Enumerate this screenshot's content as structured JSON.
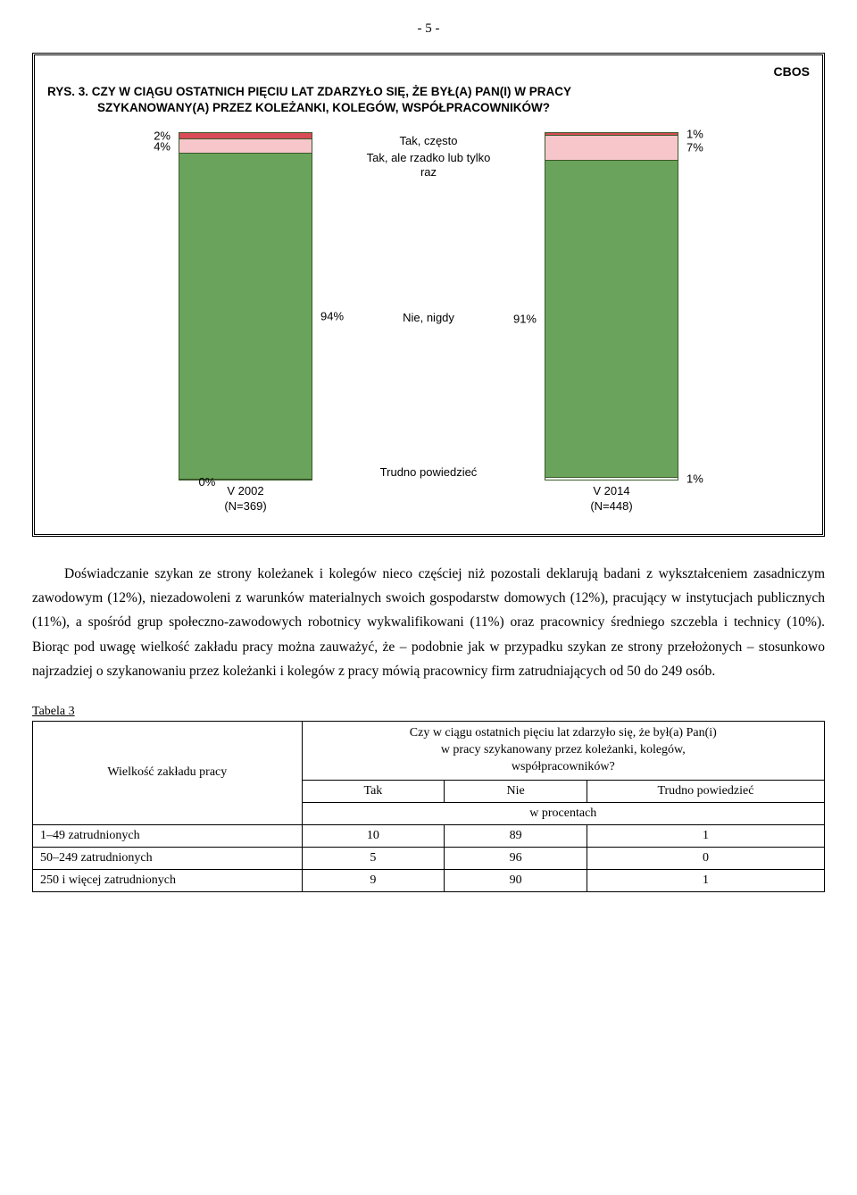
{
  "page_number": "- 5 -",
  "chart": {
    "cbos": "CBOS",
    "title_line1": "RYS. 3. CZY W CIĄGU OSTATNICH PIĘCIU LAT ZDARZYŁO SIĘ, ŻE BYŁ(A) PAN(I) W PRACY",
    "title_line2": "SZYKANOWANY(A) PRZEZ  KOLEŻANKI, KOLEGÓW, WSPÓŁPRACOWNIKÓW?",
    "legend_top1": "Tak, często",
    "legend_top2": "Tak, ale rzadko lub tylko raz",
    "legend_mid": "Nie, nigdy",
    "legend_bot": "Trudno powiedzieć",
    "colors": {
      "often": "#d94b58",
      "rarely": "#f6c6cb",
      "never": "#6aa35b",
      "dk": "#ffffff",
      "border": "#3a5a2a"
    },
    "bars": [
      {
        "segments": [
          {
            "label": "2%",
            "value": 2,
            "colorKey": "often",
            "side": "left"
          },
          {
            "label": "4%",
            "value": 4,
            "colorKey": "rarely",
            "side": "left"
          },
          {
            "label": "94%",
            "value": 94,
            "colorKey": "never",
            "side": "right"
          },
          {
            "label": "0%",
            "value": 0.001,
            "colorKey": "dk",
            "side": "left"
          }
        ],
        "under1": "V 2002",
        "under2": "(N=369)",
        "dk_label": "0%"
      },
      {
        "segments": [
          {
            "label": "1%",
            "value": 1,
            "colorKey": "often",
            "side": "right"
          },
          {
            "label": "7%",
            "value": 7,
            "colorKey": "rarely",
            "side": "right"
          },
          {
            "label": "91%",
            "value": 91,
            "colorKey": "never",
            "side": "left"
          },
          {
            "label": "1%",
            "value": 1,
            "colorKey": "dk",
            "side": "right"
          }
        ],
        "under1": "V 2014",
        "under2": "(N=448)",
        "dk_label": "1%"
      }
    ]
  },
  "paragraph": "Doświadczanie szykan ze strony koleżanek i kolegów nieco częściej niż pozostali deklarują badani z wykształceniem zasadniczym zawodowym (12%), niezadowoleni z warunków materialnych swoich gospodarstw domowych (12%), pracujący w instytucjach publicznych (11%), a spośród grup społeczno-zawodowych robotnicy wykwalifikowani (11%) oraz pracownicy  średniego szczebla i technicy (10%). Biorąc pod uwagę wielkość zakładu pracy można zauważyć, że – podobnie jak w przypadku szykan ze strony przełożonych – stosunkowo najrzadziej o szykanowaniu przez koleżanki i kolegów z pracy mówią pracownicy firm zatrudniających od 50 do 249 osób.",
  "table": {
    "caption": "Tabela 3",
    "row_header": "Wielkość zakładu pracy",
    "question_line1": "Czy w ciągu ostatnich pięciu lat zdarzyło się, że był(a) Pan(i)",
    "question_line2": "w pracy szykanowany przez koleżanki, kolegów,",
    "question_line3": "współpracowników?",
    "cols": [
      "Tak",
      "Nie",
      "Trudno powiedzieć"
    ],
    "unit": "w procentach",
    "rows": [
      {
        "label": "1–49 zatrudnionych",
        "vals": [
          "10",
          "89",
          "1"
        ]
      },
      {
        "label": "50–249 zatrudnionych",
        "vals": [
          "5",
          "96",
          "0"
        ]
      },
      {
        "label": "250 i więcej zatrudnionych",
        "vals": [
          "9",
          "90",
          "1"
        ]
      }
    ]
  }
}
